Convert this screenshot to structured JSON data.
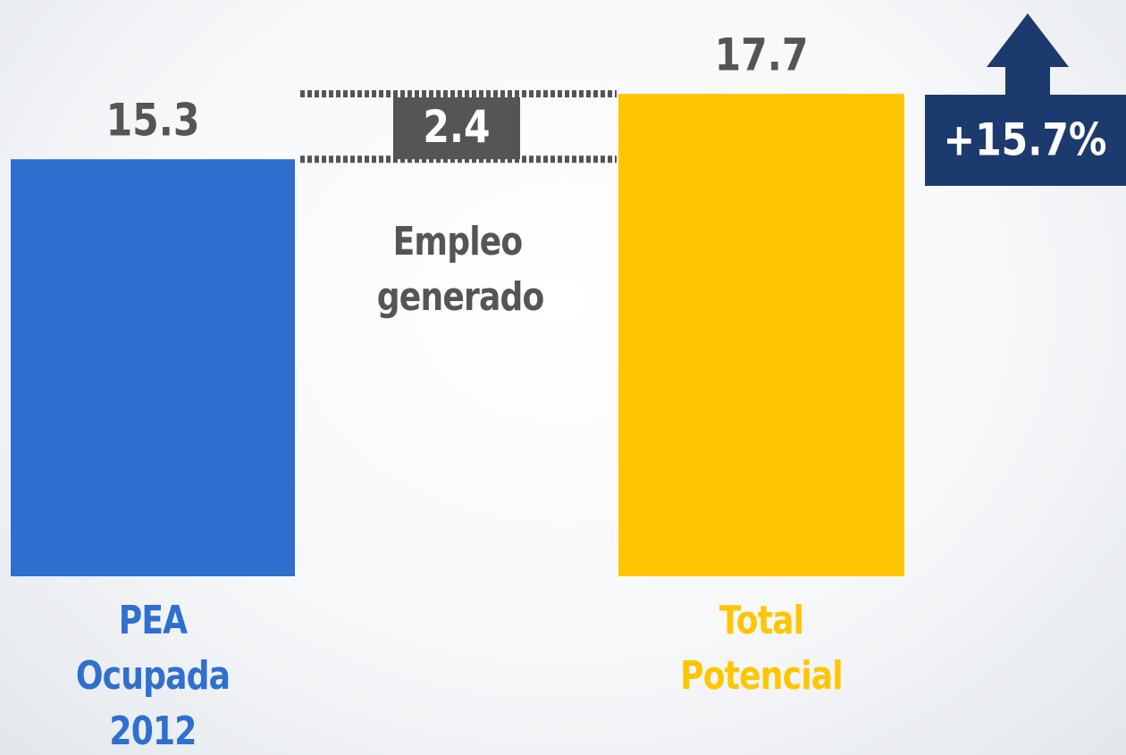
{
  "chart_data": {
    "type": "bar",
    "categories": [
      "PEA Ocupada 2012",
      "Total Potencial"
    ],
    "values": [
      15.3,
      17.7
    ],
    "colors": [
      "#2f6fd0",
      "#ffc600"
    ],
    "difference": {
      "value": 2.4,
      "label": "Empleo generado"
    },
    "growth": {
      "value": 15.7,
      "label": "+15.7%"
    }
  }
}
